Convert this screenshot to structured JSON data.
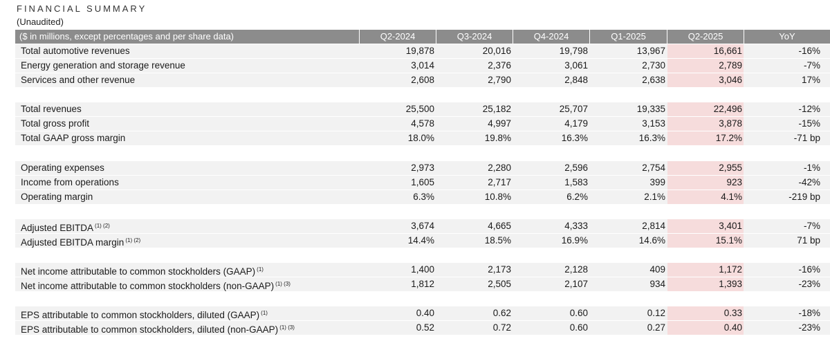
{
  "title": "FINANCIAL SUMMARY",
  "subtitle": "(Unaudited)",
  "header": {
    "label": "($ in millions, except percentages and per share data)",
    "columns": [
      "Q2-2024",
      "Q3-2024",
      "Q4-2024",
      "Q1-2025",
      "Q2-2025",
      "YoY"
    ]
  },
  "rows": [
    {
      "label": "Total automotive revenues",
      "note": "",
      "values": [
        "19,878",
        "20,016",
        "19,798",
        "13,967",
        "16,661",
        "-16%"
      ]
    },
    {
      "label": "Energy generation and storage revenue",
      "note": "",
      "values": [
        "3,014",
        "2,376",
        "3,061",
        "2,730",
        "2,789",
        "-7%"
      ]
    },
    {
      "label": "Services and other revenue",
      "note": "",
      "values": [
        "2,608",
        "2,790",
        "2,848",
        "2,638",
        "3,046",
        "17%"
      ]
    },
    {
      "label": "Total revenues",
      "note": "",
      "values": [
        "25,500",
        "25,182",
        "25,707",
        "19,335",
        "22,496",
        "-12%"
      ]
    },
    {
      "label": "Total gross profit",
      "note": "",
      "values": [
        "4,578",
        "4,997",
        "4,179",
        "3,153",
        "3,878",
        "-15%"
      ]
    },
    {
      "label": "Total GAAP gross margin",
      "note": "",
      "values": [
        "18.0%",
        "19.8%",
        "16.3%",
        "16.3%",
        "17.2%",
        "-71 bp"
      ]
    },
    {
      "label": "Operating expenses",
      "note": "",
      "values": [
        "2,973",
        "2,280",
        "2,596",
        "2,754",
        "2,955",
        "-1%"
      ]
    },
    {
      "label": "Income from operations",
      "note": "",
      "values": [
        "1,605",
        "2,717",
        "1,583",
        "399",
        "923",
        "-42%"
      ]
    },
    {
      "label": "Operating margin",
      "note": "",
      "values": [
        "6.3%",
        "10.8%",
        "6.2%",
        "2.1%",
        "4.1%",
        "-219 bp"
      ]
    },
    {
      "label": "Adjusted EBITDA",
      "note": "(1) (2)",
      "values": [
        "3,674",
        "4,665",
        "4,333",
        "2,814",
        "3,401",
        "-7%"
      ]
    },
    {
      "label": "Adjusted EBITDA margin",
      "note": "(1) (2)",
      "values": [
        "14.4%",
        "18.5%",
        "16.9%",
        "14.6%",
        "15.1%",
        "71 bp"
      ]
    },
    {
      "label": "Net income attributable to common stockholders (GAAP)",
      "note": "(1)",
      "values": [
        "1,400",
        "2,173",
        "2,128",
        "409",
        "1,172",
        "-16%"
      ]
    },
    {
      "label": "Net income attributable to common stockholders (non-GAAP)",
      "note": "(1) (3)",
      "values": [
        "1,812",
        "2,505",
        "2,107",
        "934",
        "1,393",
        "-23%"
      ]
    },
    {
      "label": "EPS attributable to common stockholders, diluted (GAAP)",
      "note": "(1)",
      "values": [
        "0.40",
        "0.62",
        "0.60",
        "0.12",
        "0.33",
        "-18%"
      ]
    },
    {
      "label": "EPS attributable to common stockholders, diluted (non-GAAP)",
      "note": "(1) (3)",
      "values": [
        "0.52",
        "0.72",
        "0.60",
        "0.27",
        "0.40",
        "-23%"
      ]
    }
  ],
  "colors": {
    "header_bg": "#8c8c8c",
    "row_shade": "#f2f2f2",
    "highlight": "#f6dcdc"
  }
}
